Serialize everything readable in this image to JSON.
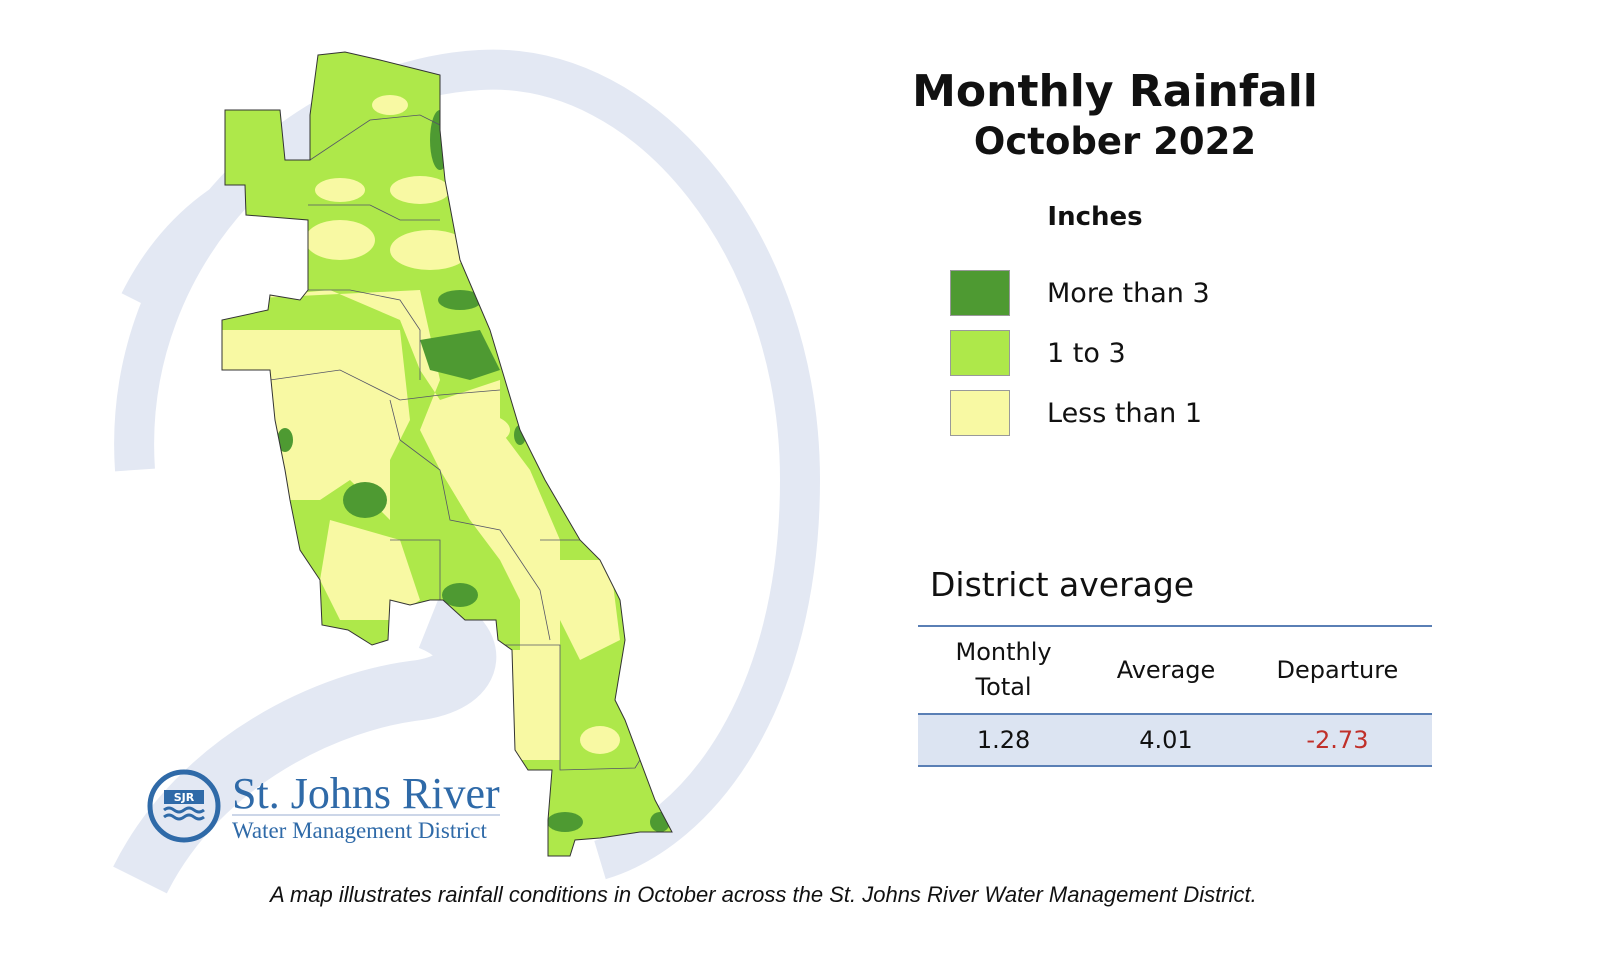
{
  "title": "Monthly Rainfall",
  "subtitle": "October 2022",
  "legend": {
    "units": "Inches",
    "items": [
      {
        "label": "More than 3",
        "color": "#4e9a32"
      },
      {
        "label": "1 to 3",
        "color": "#aee84a"
      },
      {
        "label": "Less than 1",
        "color": "#f8f9a3"
      }
    ]
  },
  "district_average": {
    "title": "District average",
    "headers": [
      "Monthly Total",
      "Average",
      "Departure"
    ],
    "values": [
      "1.28",
      "4.01",
      "-2.73"
    ],
    "departure_color": "#c0302a"
  },
  "logo": {
    "line1": "St. Johns River",
    "line2": "Water Management District",
    "mark": "SJR"
  },
  "caption": "A map illustrates rainfall conditions in October across the St. Johns River Water Management District."
}
